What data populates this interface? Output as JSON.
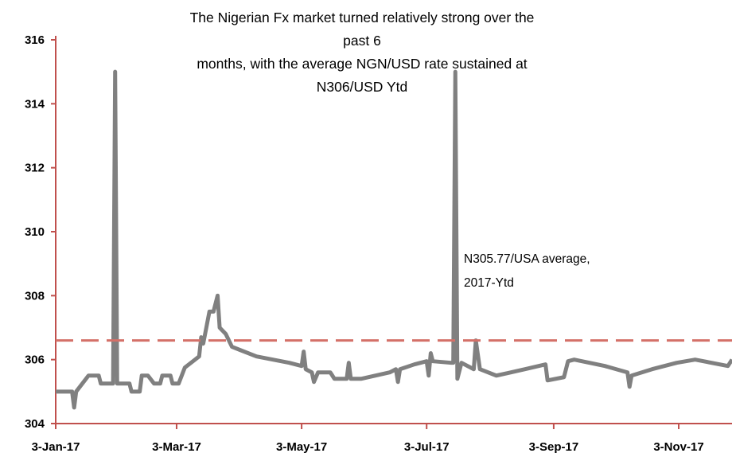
{
  "chart_data": {
    "type": "line",
    "title": "The Nigerian Fx market turned relatively strong over the past 6\nmonths, with the average NGN/USD rate sustained at\nN306/USD Ytd",
    "annotation": "N305.77/USA average,\n2017-Ytd",
    "xlim": [
      "2017-01-03",
      "2017-11-29"
    ],
    "xticks": [
      {
        "value": "2017-01-03",
        "label": "3-Jan-17"
      },
      {
        "value": "2017-03-03",
        "label": "3-Mar-17"
      },
      {
        "value": "2017-05-03",
        "label": "3-May-17"
      },
      {
        "value": "2017-07-03",
        "label": "3-Jul-17"
      },
      {
        "value": "2017-09-03",
        "label": "3-Sep-17"
      },
      {
        "value": "2017-11-03",
        "label": "3-Nov-17"
      }
    ],
    "ylim": [
      304,
      316
    ],
    "yticks": [
      304,
      306,
      308,
      310,
      312,
      314,
      316
    ],
    "axis_color": "#c0504d",
    "reference_line": {
      "value": 306.6,
      "color": "#d47068",
      "dashed": true
    },
    "series": [
      {
        "color": "#808080",
        "x": [
          "2017-01-03",
          "2017-01-11",
          "2017-01-12",
          "2017-01-13",
          "2017-01-19",
          "2017-01-24",
          "2017-01-25",
          "2017-01-31",
          "2017-02-01",
          "2017-02-02",
          "2017-02-08",
          "2017-02-09",
          "2017-02-13",
          "2017-02-14",
          "2017-02-17",
          "2017-02-20",
          "2017-02-23",
          "2017-02-24",
          "2017-02-28",
          "2017-03-01",
          "2017-03-04",
          "2017-03-07",
          "2017-03-12",
          "2017-03-14",
          "2017-03-15",
          "2017-03-16",
          "2017-03-19",
          "2017-03-21",
          "2017-03-23",
          "2017-03-24",
          "2017-03-27",
          "2017-03-30",
          "2017-04-03",
          "2017-04-11",
          "2017-04-19",
          "2017-04-27",
          "2017-05-03",
          "2017-05-04",
          "2017-05-05",
          "2017-05-08",
          "2017-05-09",
          "2017-05-11",
          "2017-05-17",
          "2017-05-19",
          "2017-05-25",
          "2017-05-26",
          "2017-05-27",
          "2017-06-01",
          "2017-06-15",
          "2017-06-18",
          "2017-06-19",
          "2017-06-20",
          "2017-06-27",
          "2017-07-03",
          "2017-07-04",
          "2017-07-05",
          "2017-07-06",
          "2017-07-15",
          "2017-07-16",
          "2017-07-17",
          "2017-07-18",
          "2017-07-20",
          "2017-07-26",
          "2017-07-27",
          "2017-07-29",
          "2017-08-06",
          "2017-08-20",
          "2017-08-30",
          "2017-08-31",
          "2017-09-08",
          "2017-09-10",
          "2017-09-13",
          "2017-09-28",
          "2017-10-09",
          "2017-10-10",
          "2017-10-11",
          "2017-10-21",
          "2017-11-02",
          "2017-11-11",
          "2017-11-27",
          "2017-11-29"
        ],
        "values": [
          305.0,
          305.0,
          304.5,
          305.0,
          305.5,
          305.5,
          305.25,
          305.25,
          315.0,
          305.25,
          305.25,
          305.0,
          305.0,
          305.5,
          305.5,
          305.25,
          305.25,
          305.5,
          305.5,
          305.25,
          305.25,
          305.75,
          306.0,
          306.1,
          306.7,
          306.5,
          307.5,
          307.5,
          308.0,
          307.0,
          306.8,
          306.4,
          306.3,
          306.1,
          306.0,
          305.9,
          305.8,
          306.25,
          305.7,
          305.6,
          305.3,
          305.6,
          305.6,
          305.4,
          305.4,
          305.9,
          305.4,
          305.4,
          305.6,
          305.7,
          305.3,
          305.7,
          305.85,
          305.95,
          305.5,
          306.2,
          305.95,
          305.9,
          305.9,
          315.0,
          305.4,
          305.9,
          305.7,
          306.6,
          305.7,
          305.5,
          305.7,
          305.85,
          305.35,
          305.45,
          305.95,
          306.0,
          305.8,
          305.6,
          305.15,
          305.5,
          305.7,
          305.9,
          306.0,
          305.8,
          306.0
        ]
      }
    ]
  }
}
